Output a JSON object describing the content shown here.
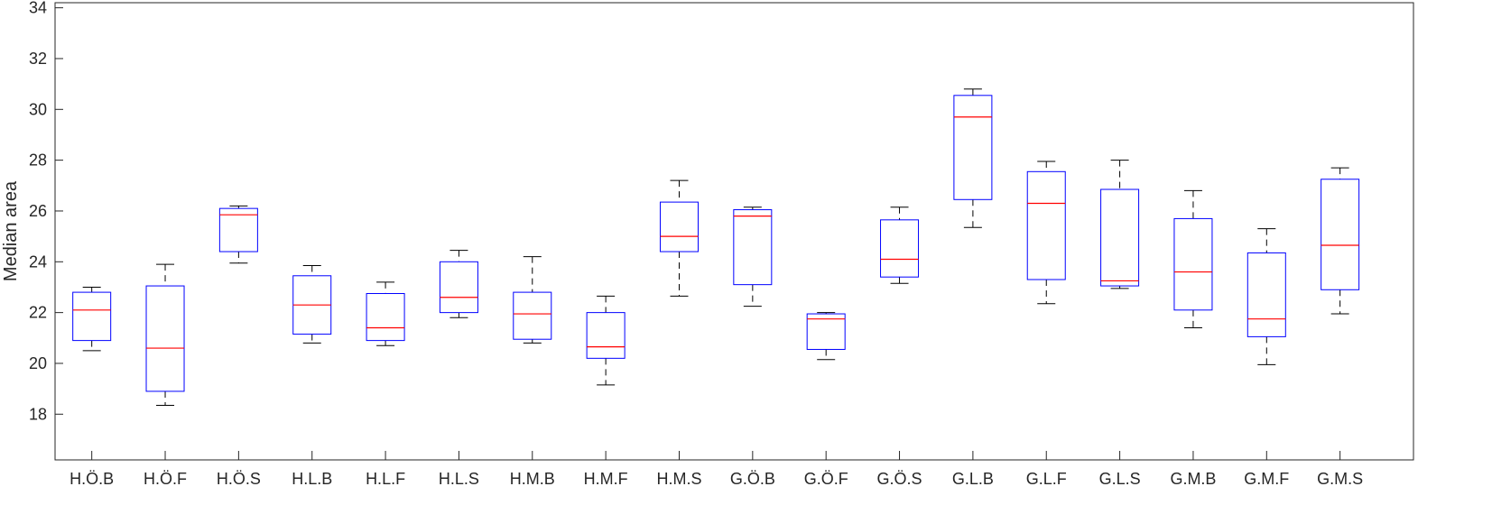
{
  "chart_data": {
    "type": "boxplot",
    "title": "",
    "xlabel": "",
    "ylabel": "Median area",
    "ylim": [
      16.2,
      34.2
    ],
    "yticks": [
      18,
      20,
      22,
      24,
      26,
      28,
      30,
      32,
      34
    ],
    "grid": false,
    "categories": [
      "H.Ö.B",
      "H.Ö.F",
      "H.Ö.S",
      "H.L.B",
      "H.L.F",
      "H.L.S",
      "H.M.B",
      "H.M.F",
      "H.M.S",
      "G.Ö.B",
      "G.Ö.F",
      "G.Ö.S",
      "G.L.B",
      "G.L.F",
      "G.L.S",
      "G.M.B",
      "G.M.F",
      "G.M.S"
    ],
    "boxes": [
      {
        "min": 20.5,
        "q1": 20.9,
        "median": 22.1,
        "q3": 22.8,
        "max": 23.0
      },
      {
        "min": 18.35,
        "q1": 18.9,
        "median": 20.6,
        "q3": 23.05,
        "max": 23.9
      },
      {
        "min": 23.95,
        "q1": 24.4,
        "median": 25.85,
        "q3": 26.1,
        "max": 26.2
      },
      {
        "min": 20.8,
        "q1": 21.15,
        "median": 22.3,
        "q3": 23.45,
        "max": 23.85
      },
      {
        "min": 20.7,
        "q1": 20.9,
        "median": 21.4,
        "q3": 22.75,
        "max": 23.2
      },
      {
        "min": 21.8,
        "q1": 22.0,
        "median": 22.6,
        "q3": 24.0,
        "max": 24.45
      },
      {
        "min": 20.8,
        "q1": 20.95,
        "median": 21.95,
        "q3": 22.8,
        "max": 24.2
      },
      {
        "min": 19.15,
        "q1": 20.2,
        "median": 20.65,
        "q3": 22.0,
        "max": 22.65
      },
      {
        "min": 22.65,
        "q1": 24.4,
        "median": 25.0,
        "q3": 26.35,
        "max": 27.2
      },
      {
        "min": 22.25,
        "q1": 23.1,
        "median": 25.8,
        "q3": 26.05,
        "max": 26.15
      },
      {
        "min": 20.15,
        "q1": 20.55,
        "median": 21.75,
        "q3": 21.95,
        "max": 22.0
      },
      {
        "min": 23.15,
        "q1": 23.4,
        "median": 24.1,
        "q3": 25.65,
        "max": 26.15
      },
      {
        "min": 25.35,
        "q1": 26.45,
        "median": 29.7,
        "q3": 30.55,
        "max": 30.8
      },
      {
        "min": 22.35,
        "q1": 23.3,
        "median": 26.3,
        "q3": 27.55,
        "max": 27.95
      },
      {
        "min": 22.95,
        "q1": 23.05,
        "median": 23.25,
        "q3": 26.85,
        "max": 28.0
      },
      {
        "min": 21.4,
        "q1": 22.1,
        "median": 23.6,
        "q3": 25.7,
        "max": 26.8
      },
      {
        "min": 19.95,
        "q1": 21.05,
        "median": 21.75,
        "q3": 24.35,
        "max": 25.3
      },
      {
        "min": 21.95,
        "q1": 22.9,
        "median": 24.65,
        "q3": 27.25,
        "max": 27.7
      }
    ],
    "colors": {
      "box": "#0000ff",
      "median": "#ff0000",
      "whisker": "#000000",
      "axis": "#262626"
    }
  }
}
